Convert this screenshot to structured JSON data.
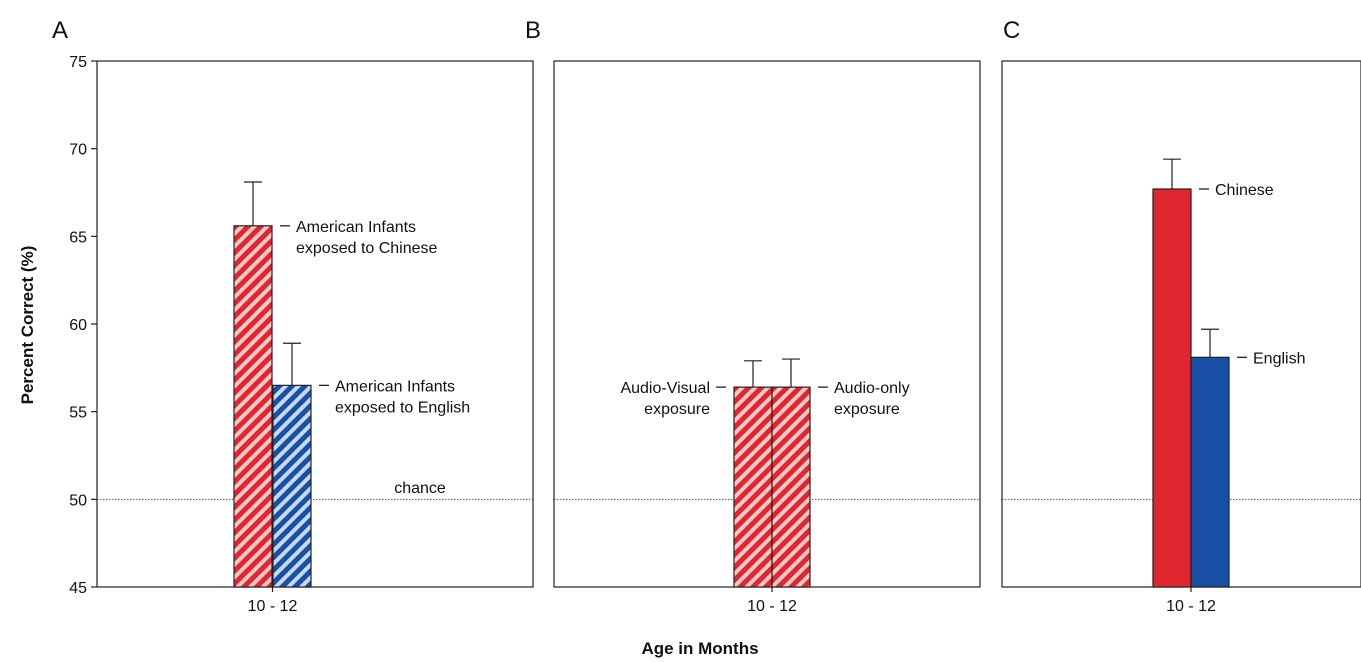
{
  "figure": {
    "ylabel": "Percent Correct (%)",
    "xlabel": "Age in Months",
    "chance_label": "chance"
  },
  "colors": {
    "red": "#e0262e",
    "blue": "#1850a6",
    "stripe_light": "#f7c8c8",
    "stripe_light_blue": "#c9d8f0"
  },
  "chart_data": [
    {
      "type": "bar",
      "panel": "A",
      "categories": [
        "10 - 12"
      ],
      "ylim": [
        45,
        75
      ],
      "yticks": [
        45,
        50,
        55,
        60,
        65,
        70,
        75
      ],
      "chance": 50,
      "series": [
        {
          "label_lines": [
            "American Infants",
            "exposed to Chinese"
          ],
          "value": 65.6,
          "error": 2.5,
          "color": "red",
          "fill": "hatched"
        },
        {
          "label_lines": [
            "American Infants",
            "exposed to English"
          ],
          "value": 56.5,
          "error": 2.4,
          "color": "blue",
          "fill": "hatched"
        }
      ]
    },
    {
      "type": "bar",
      "panel": "B",
      "categories": [
        "10 - 12"
      ],
      "ylim": [
        45,
        75
      ],
      "chance": 50,
      "series": [
        {
          "label_lines": [
            "Audio-Visual",
            "exposure"
          ],
          "value": 56.4,
          "error": 1.5,
          "color": "red",
          "fill": "hatched"
        },
        {
          "label_lines": [
            "Audio-only",
            "exposure"
          ],
          "value": 56.4,
          "error": 1.6,
          "color": "red",
          "fill": "hatched"
        }
      ]
    },
    {
      "type": "bar",
      "panel": "C",
      "categories": [
        "10 - 12"
      ],
      "ylim": [
        45,
        75
      ],
      "chance": 50,
      "series": [
        {
          "label_lines": [
            "Chinese"
          ],
          "value": 67.7,
          "error": 1.7,
          "color": "red",
          "fill": "solid"
        },
        {
          "label_lines": [
            "English"
          ],
          "value": 58.1,
          "error": 1.6,
          "color": "blue",
          "fill": "solid"
        }
      ]
    }
  ]
}
